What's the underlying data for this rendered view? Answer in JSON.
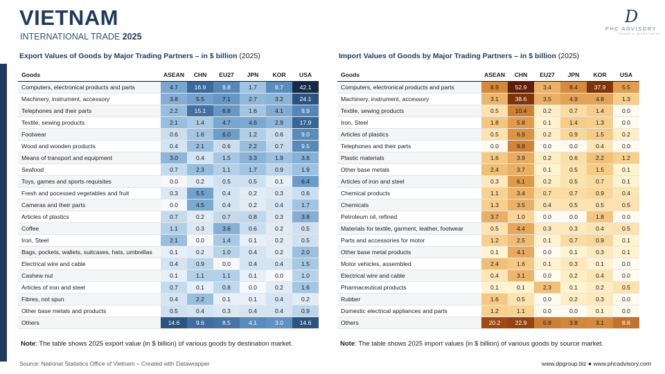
{
  "header": {
    "title": "VIETNAM",
    "subtitle_prefix": "INTERNATIONAL TRADE",
    "subtitle_year": "2025"
  },
  "logo": {
    "mark": "D",
    "name": "PHC ADVISORY",
    "tag": "TRADE & INVESTMENT"
  },
  "colors": {
    "brand": "#1f3a5f",
    "export_scale": "blue",
    "import_scale": "orange"
  },
  "chart_data": [
    {
      "type": "table",
      "title": "Export Values of Goods by Major Trading Partners – in $ billion",
      "title_year": "(2025)",
      "row_header": "Goods",
      "columns": [
        "ASEAN",
        "CHN",
        "EU27",
        "JPN",
        "KOR",
        "USA"
      ],
      "rows": [
        {
          "goods": "Computers, electronical products and parts",
          "values": [
            4.7,
            16.9,
            9.8,
            1.7,
            8.7,
            42.1
          ]
        },
        {
          "goods": "Machinery, instrument, accessory",
          "values": [
            3.8,
            5.5,
            7.1,
            2.7,
            3.2,
            24.1
          ]
        },
        {
          "goods": "Telephones and their parts",
          "values": [
            2.2,
            15.1,
            6.8,
            1.6,
            4.1,
            9.9
          ]
        },
        {
          "goods": "Textile, sewing products",
          "values": [
            2.1,
            1.4,
            4.7,
            4.6,
            2.9,
            17.9
          ]
        },
        {
          "goods": "Footwear",
          "values": [
            0.6,
            1.6,
            6.0,
            1.2,
            0.6,
            9.0
          ]
        },
        {
          "goods": "Wood and wooden products",
          "values": [
            0.4,
            2.1,
            0.6,
            2.2,
            0.7,
            9.5
          ]
        },
        {
          "goods": "Means of transport and equipment",
          "values": [
            3.0,
            0.4,
            1.5,
            3.3,
            1.9,
            3.6
          ]
        },
        {
          "goods": "Seafood",
          "values": [
            0.7,
            2.3,
            1.1,
            1.7,
            0.9,
            1.9
          ]
        },
        {
          "goods": "Toys, games and sports requisites",
          "values": [
            0.0,
            0.2,
            0.5,
            0.5,
            0.1,
            6.4
          ]
        },
        {
          "goods": "Fresh and pocessed vegetables and fruit",
          "values": [
            0.3,
            5.5,
            0.4,
            0.2,
            0.3,
            0.6
          ]
        },
        {
          "goods": "Cameras and their parts",
          "values": [
            0.0,
            4.5,
            0.4,
            0.2,
            0.4,
            1.7
          ]
        },
        {
          "goods": "Articles of plastics",
          "values": [
            0.7,
            0.2,
            0.7,
            0.8,
            0.3,
            3.8
          ]
        },
        {
          "goods": "Coffee",
          "values": [
            1.1,
            0.3,
            3.6,
            0.6,
            0.2,
            0.5
          ]
        },
        {
          "goods": "Iron, Steel",
          "values": [
            2.1,
            0.0,
            1.4,
            0.1,
            0.2,
            0.5
          ]
        },
        {
          "goods": "Bags, pockets, wallets, suitcases, hats, umbrellas",
          "values": [
            0.1,
            0.2,
            1.0,
            0.4,
            0.2,
            2.0
          ]
        },
        {
          "goods": "Electrical wire and cable",
          "values": [
            0.4,
            0.9,
            0.0,
            0.4,
            0.4,
            1.5
          ]
        },
        {
          "goods": "Cashew nut",
          "values": [
            0.1,
            1.1,
            1.1,
            0.1,
            0.0,
            1.0
          ]
        },
        {
          "goods": "Articles of iron and steel",
          "values": [
            0.7,
            0.1,
            0.8,
            0.0,
            0.2,
            1.6
          ]
        },
        {
          "goods": "Fibres, not spun",
          "values": [
            0.4,
            2.2,
            0.1,
            0.1,
            0.4,
            0.2
          ]
        },
        {
          "goods": "Other base metals and products",
          "values": [
            0.5,
            0.4,
            0.3,
            0.4,
            0.4,
            0.9
          ]
        },
        {
          "goods": "Others",
          "values": [
            14.6,
            9.6,
            8.5,
            4.1,
            3.0,
            14.6
          ]
        }
      ],
      "note_label": "Note",
      "note_text": ": The table shows 2025 export value (in $ billion) of various  goods by destination market."
    },
    {
      "type": "table",
      "title": "Import Values of Goods by Major Trading Partners – in $ billion",
      "title_year": "(2025)",
      "row_header": "Goods",
      "columns": [
        "ASEAN",
        "CHN",
        "EU27",
        "JPN",
        "KOR",
        "USA"
      ],
      "rows": [
        {
          "goods": "Computers, electronical products and parts",
          "values": [
            8.9,
            52.9,
            3.4,
            8.4,
            37.9,
            5.5
          ]
        },
        {
          "goods": "Machinery, instrument, accessory",
          "values": [
            3.1,
            38.6,
            3.5,
            4.9,
            4.8,
            1.3
          ]
        },
        {
          "goods": "Textile, sewing products",
          "values": [
            0.5,
            10.4,
            0.2,
            0.7,
            1.4,
            0.0
          ]
        },
        {
          "goods": "Iron, Steel",
          "values": [
            1.8,
            5.8,
            0.1,
            1.4,
            1.3,
            0.0
          ]
        },
        {
          "goods": "Articles of plastics",
          "values": [
            0.5,
            6.9,
            0.2,
            0.9,
            1.5,
            0.2
          ]
        },
        {
          "goods": "Telephones and their parts",
          "values": [
            0.0,
            9.8,
            0.0,
            0.0,
            0.4,
            0.0
          ]
        },
        {
          "goods": "Plastic materials",
          "values": [
            1.6,
            3.9,
            0.2,
            0.6,
            2.2,
            1.2
          ]
        },
        {
          "goods": "Other base metals",
          "values": [
            2.4,
            3.7,
            0.1,
            0.5,
            1.5,
            0.1
          ]
        },
        {
          "goods": "Articles of iron and steel",
          "values": [
            0.3,
            6.1,
            0.2,
            0.5,
            0.7,
            0.1
          ]
        },
        {
          "goods": "Chemical products",
          "values": [
            1.1,
            3.4,
            0.7,
            0.7,
            0.9,
            0.4
          ]
        },
        {
          "goods": "Chemicals",
          "values": [
            1.3,
            3.5,
            0.4,
            0.5,
            0.5,
            0.5
          ]
        },
        {
          "goods": "Petroleum oil, refined",
          "values": [
            3.7,
            1.0,
            0.0,
            0.0,
            1.8,
            0.0
          ]
        },
        {
          "goods": "Materials for textile, garment, leather, footwear",
          "values": [
            0.5,
            4.4,
            0.3,
            0.3,
            0.4,
            0.5
          ]
        },
        {
          "goods": "Parts and accessories for motor",
          "values": [
            1.2,
            2.5,
            0.1,
            0.7,
            0.9,
            0.1
          ]
        },
        {
          "goods": "Other base metal products",
          "values": [
            0.1,
            4.1,
            0.0,
            0.1,
            0.3,
            0.1
          ]
        },
        {
          "goods": "Motor vehicles, assembled",
          "values": [
            2.4,
            1.6,
            0.1,
            0.3,
            0.1,
            0.0
          ]
        },
        {
          "goods": "Electrical wire and cable",
          "values": [
            0.4,
            3.1,
            0.0,
            0.2,
            0.4,
            0.0
          ]
        },
        {
          "goods": "Pharmaceutical products",
          "values": [
            0.1,
            0.1,
            2.3,
            0.1,
            0.2,
            0.5
          ]
        },
        {
          "goods": "Rubber",
          "values": [
            1.6,
            0.5,
            0.0,
            0.2,
            0.3,
            0.0
          ]
        },
        {
          "goods": "Domestic electrical appliances and parts",
          "values": [
            1.2,
            1.1,
            0.0,
            0.0,
            0.1,
            0.0
          ]
        },
        {
          "goods": "Others",
          "values": [
            20.2,
            22.9,
            5.8,
            3.8,
            3.1,
            8.8
          ]
        }
      ],
      "note_label": "Note",
      "note_text": ": The table shows 2025 import values (in $ billion) of various goods by source market."
    }
  ],
  "footer": {
    "source": "Source: National Statistics Office of Vietnam – Created with Datawrapper",
    "links": "www.dpgroup.biz ● www.phcadvisory.com"
  }
}
